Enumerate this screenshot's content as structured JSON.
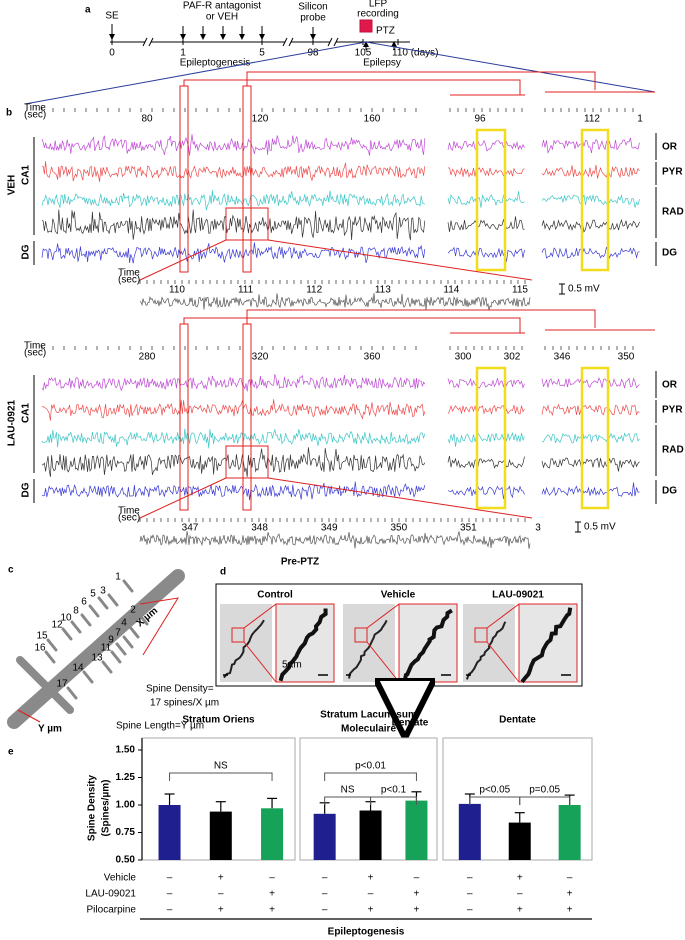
{
  "panel_a": {
    "letter": "a",
    "se": "SE",
    "drug": [
      "PAF-R antagonist",
      "or VEH"
    ],
    "probe": [
      "Silicon",
      "probe"
    ],
    "lfp": [
      "LFP",
      "recording"
    ],
    "ptz": "PTZ",
    "days": [
      "0",
      "1",
      "5",
      "98",
      "105",
      "110 (days)"
    ],
    "epileptogenesis": "Epileptogenesis",
    "epilepsy": "Epilepsy"
  },
  "panel_b": {
    "letter": "b",
    "time_label": [
      "Time",
      "(sec)"
    ],
    "regions": [
      "CA1",
      "DG"
    ],
    "layers": [
      "OR",
      "PYR",
      "RAD",
      "DG"
    ],
    "scale": "0.5 mV",
    "groups": [
      {
        "name": "VEH",
        "color": "#000000",
        "main_ticks": [
          "80",
          "120",
          "160"
        ],
        "zoom1_ticks": [
          "96"
        ],
        "zoom2_ticks": [
          "112",
          "1"
        ],
        "detail_ticks": [
          "110",
          "111",
          "112",
          "113",
          "114",
          "115"
        ]
      },
      {
        "name": "LAU-0921",
        "color": "#22a04b",
        "main_ticks": [
          "280",
          "320",
          "360"
        ],
        "zoom1_ticks": [
          "300",
          "302"
        ],
        "zoom2_ticks": [
          "346",
          "350"
        ],
        "detail_ticks": [
          "347",
          "348",
          "349",
          "350",
          "351",
          "3"
        ],
        "note": "Pre-PTZ"
      }
    ]
  },
  "panel_c": {
    "letter": "c",
    "spine_numbers": [
      "1",
      "2",
      "3",
      "4",
      "5",
      "6",
      "7",
      "8",
      "9",
      "10",
      "11",
      "12",
      "13",
      "14",
      "15",
      "16",
      "17"
    ],
    "x": "X µm",
    "y": "Y µm",
    "density": [
      "Spine Density=",
      "17 spines/X µm"
    ],
    "length": "Spine Length=Y µm"
  },
  "panel_d": {
    "letter": "d",
    "images": [
      "Control",
      "Vehicle",
      "LAU-09021"
    ],
    "scale": "5µm",
    "region": "Dentate"
  },
  "panel_e": {
    "letter": "e",
    "ylabel": [
      "Spine Density",
      "(Spines/µm)"
    ],
    "conditions": [
      {
        "name": "Vehicle",
        "signs": [
          "–",
          "+",
          "–"
        ]
      },
      {
        "name": "LAU-09021",
        "signs": [
          "–",
          "–",
          "+"
        ]
      },
      {
        "name": "Pilocarpine",
        "signs": [
          "–",
          "+",
          "+"
        ]
      }
    ],
    "xlabel": "Epileptogenesis"
  },
  "chart_data": [
    {
      "type": "bar",
      "title": [
        "Stratum Oriens"
      ],
      "values": [
        1.0,
        0.94,
        0.97
      ],
      "errors": [
        0.1,
        0.09,
        0.09
      ],
      "colors": [
        "#1f1f8f",
        "#000000",
        "#17a25a"
      ],
      "ylim": [
        0.5,
        1.5
      ],
      "yticks": [
        {
          "value": 0.5,
          "label": "0.50"
        },
        0.75,
        {
          "value": 1,
          "label": "1.00"
        },
        1.25,
        {
          "value": 1.5,
          "label": "1.50"
        }
      ],
      "comparisons": [
        {
          "label": "NS",
          "between": [
            0,
            2
          ]
        }
      ]
    },
    {
      "type": "bar",
      "title": [
        "Stratum Lacunosum",
        "Moleculaire"
      ],
      "values": [
        0.92,
        0.95,
        1.04
      ],
      "errors": [
        0.1,
        0.08,
        0.08
      ],
      "colors": [
        "#1f1f8f",
        "#000000",
        "#17a25a"
      ],
      "ylim": [
        0.5,
        1.5
      ],
      "comparisons": [
        {
          "label": "p<0.01",
          "between": [
            0,
            2
          ]
        },
        {
          "label": "NS",
          "between": [
            0,
            1
          ]
        },
        {
          "label": "p<0.1",
          "between": [
            1,
            2
          ]
        }
      ]
    },
    {
      "type": "bar",
      "title": [
        "Dentate"
      ],
      "values": [
        1.01,
        0.84,
        1.0
      ],
      "errors": [
        0.09,
        0.09,
        0.09
      ],
      "colors": [
        "#1f1f8f",
        "#000000",
        "#17a25a"
      ],
      "ylim": [
        0.5,
        1.5
      ],
      "comparisons": [
        {
          "label": "p<0.05",
          "between": [
            0,
            1
          ]
        },
        {
          "label": "p=0.05",
          "between": [
            1,
            2
          ]
        }
      ]
    }
  ]
}
